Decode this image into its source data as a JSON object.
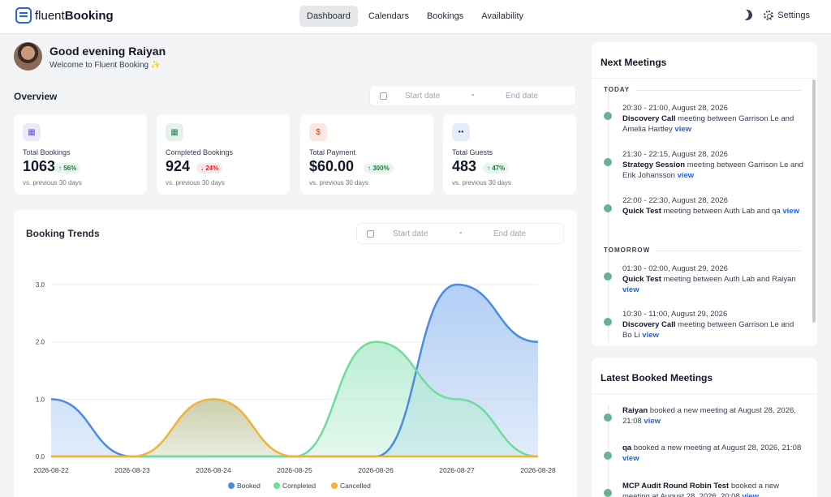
{
  "brand": {
    "light": "fluent",
    "bold": "Booking"
  },
  "nav": [
    {
      "label": "Dashboard",
      "active": true
    },
    {
      "label": "Calendars",
      "active": false
    },
    {
      "label": "Bookings",
      "active": false
    },
    {
      "label": "Availability",
      "active": false
    }
  ],
  "settings_label": "Settings",
  "greeting": {
    "title": "Good evening Raiyan",
    "subtitle": "Welcome to Fluent Booking ✨"
  },
  "overview": {
    "title": "Overview",
    "start_placeholder": "Start date",
    "separator": "-",
    "end_placeholder": "End date"
  },
  "stats": [
    {
      "label": "Total Bookings",
      "value": "1063",
      "badge": "↑ 56%",
      "trend": "up",
      "sub": "vs. previous 30 days",
      "icon": "calendar-icon",
      "icon_glyph": "▦",
      "icon_bg": "#ece9fb",
      "icon_color": "#6d4fd8"
    },
    {
      "label": "Completed Bookings",
      "value": "924",
      "badge": "↓ 24%",
      "trend": "down",
      "sub": "vs. previous 30 days",
      "icon": "calendar-check-icon",
      "icon_glyph": "▦",
      "icon_bg": "#e4f3ea",
      "icon_color": "#2f7d52"
    },
    {
      "label": "Total Payment",
      "value": "$60.00",
      "badge": "↑ 300%",
      "trend": "up",
      "sub": "vs. previous 30 days",
      "icon": "dollar-icon",
      "icon_glyph": "$",
      "icon_bg": "#fde7e2",
      "icon_color": "#c2410c"
    },
    {
      "label": "Total Guests",
      "value": "483",
      "badge": "↑ 47%",
      "trend": "up",
      "sub": "vs. previous 30 days",
      "icon": "users-icon",
      "icon_glyph": "●●",
      "icon_bg": "#e6ecfb",
      "icon_color": "#1e3a8a"
    }
  ],
  "trends": {
    "title": "Booking Trends",
    "start_placeholder": "Start date",
    "separator": "-",
    "end_placeholder": "End date"
  },
  "chart_data": {
    "type": "area",
    "title": "Booking Trends",
    "categories": [
      "2026-08-22",
      "2026-08-23",
      "2026-08-24",
      "2026-08-25",
      "2026-08-26",
      "2026-08-27",
      "2026-08-28"
    ],
    "yticks": [
      "0.0",
      "1.0",
      "2.0",
      "3.0"
    ],
    "ylim": [
      0,
      3
    ],
    "grid": true,
    "legend_position": "bottom",
    "series": [
      {
        "name": "Booked",
        "values": [
          1,
          0,
          0,
          0,
          0,
          3,
          2
        ],
        "color": "#4a8de0",
        "fill": "#a9c9f3"
      },
      {
        "name": "Completed",
        "values": [
          0,
          0,
          0,
          0,
          2,
          1,
          0
        ],
        "color": "#6fdc9a",
        "fill": "#b3ecd0"
      },
      {
        "name": "Cancelled",
        "values": [
          0,
          0,
          1,
          0,
          0,
          0,
          0
        ],
        "color": "#f2b233",
        "fill": "#c4c9a3"
      }
    ]
  },
  "next_meetings": {
    "title": "Next Meetings",
    "groups": [
      {
        "label": "TODAY",
        "items": [
          {
            "time": "20:30 - 21:00, August 28, 2026",
            "name": "Discovery Call",
            "desc": " meeting between Garrison Le and Amelia Hartley ",
            "link": "view"
          },
          {
            "time": "21:30 - 22:15, August 28, 2026",
            "name": "Strategy Session",
            "desc": " meeting between Garrison Le and Erik Johansson ",
            "link": "view"
          },
          {
            "time": "22:00 - 22:30, August 28, 2026",
            "name": "Quick Test",
            "desc": " meeting between Auth Lab and qa ",
            "link": "view"
          }
        ]
      },
      {
        "label": "TOMORROW",
        "items": [
          {
            "time": "01:30 - 02:00, August 29, 2026",
            "name": "Quick Test",
            "desc": " meeting between Auth Lab and Raiyan ",
            "link": "view"
          },
          {
            "time": "10:30 - 11:00, August 29, 2026",
            "name": "Discovery Call",
            "desc": " meeting between Garrison Le and Bo Li ",
            "link": "view"
          }
        ]
      }
    ]
  },
  "latest_booked": {
    "title": "Latest Booked Meetings",
    "items": [
      {
        "who": "Raiyan",
        "text": " booked a new meeting at August 28, 2026, 21:08 ",
        "link": "view"
      },
      {
        "who": "qa",
        "text": " booked a new meeting at August 28, 2026, 21:08 ",
        "link": "view"
      },
      {
        "who": "MCP Audit Round Robin Test",
        "text": " booked a new meeting at August 28, 2026, 20:08 ",
        "link": "view"
      }
    ]
  }
}
